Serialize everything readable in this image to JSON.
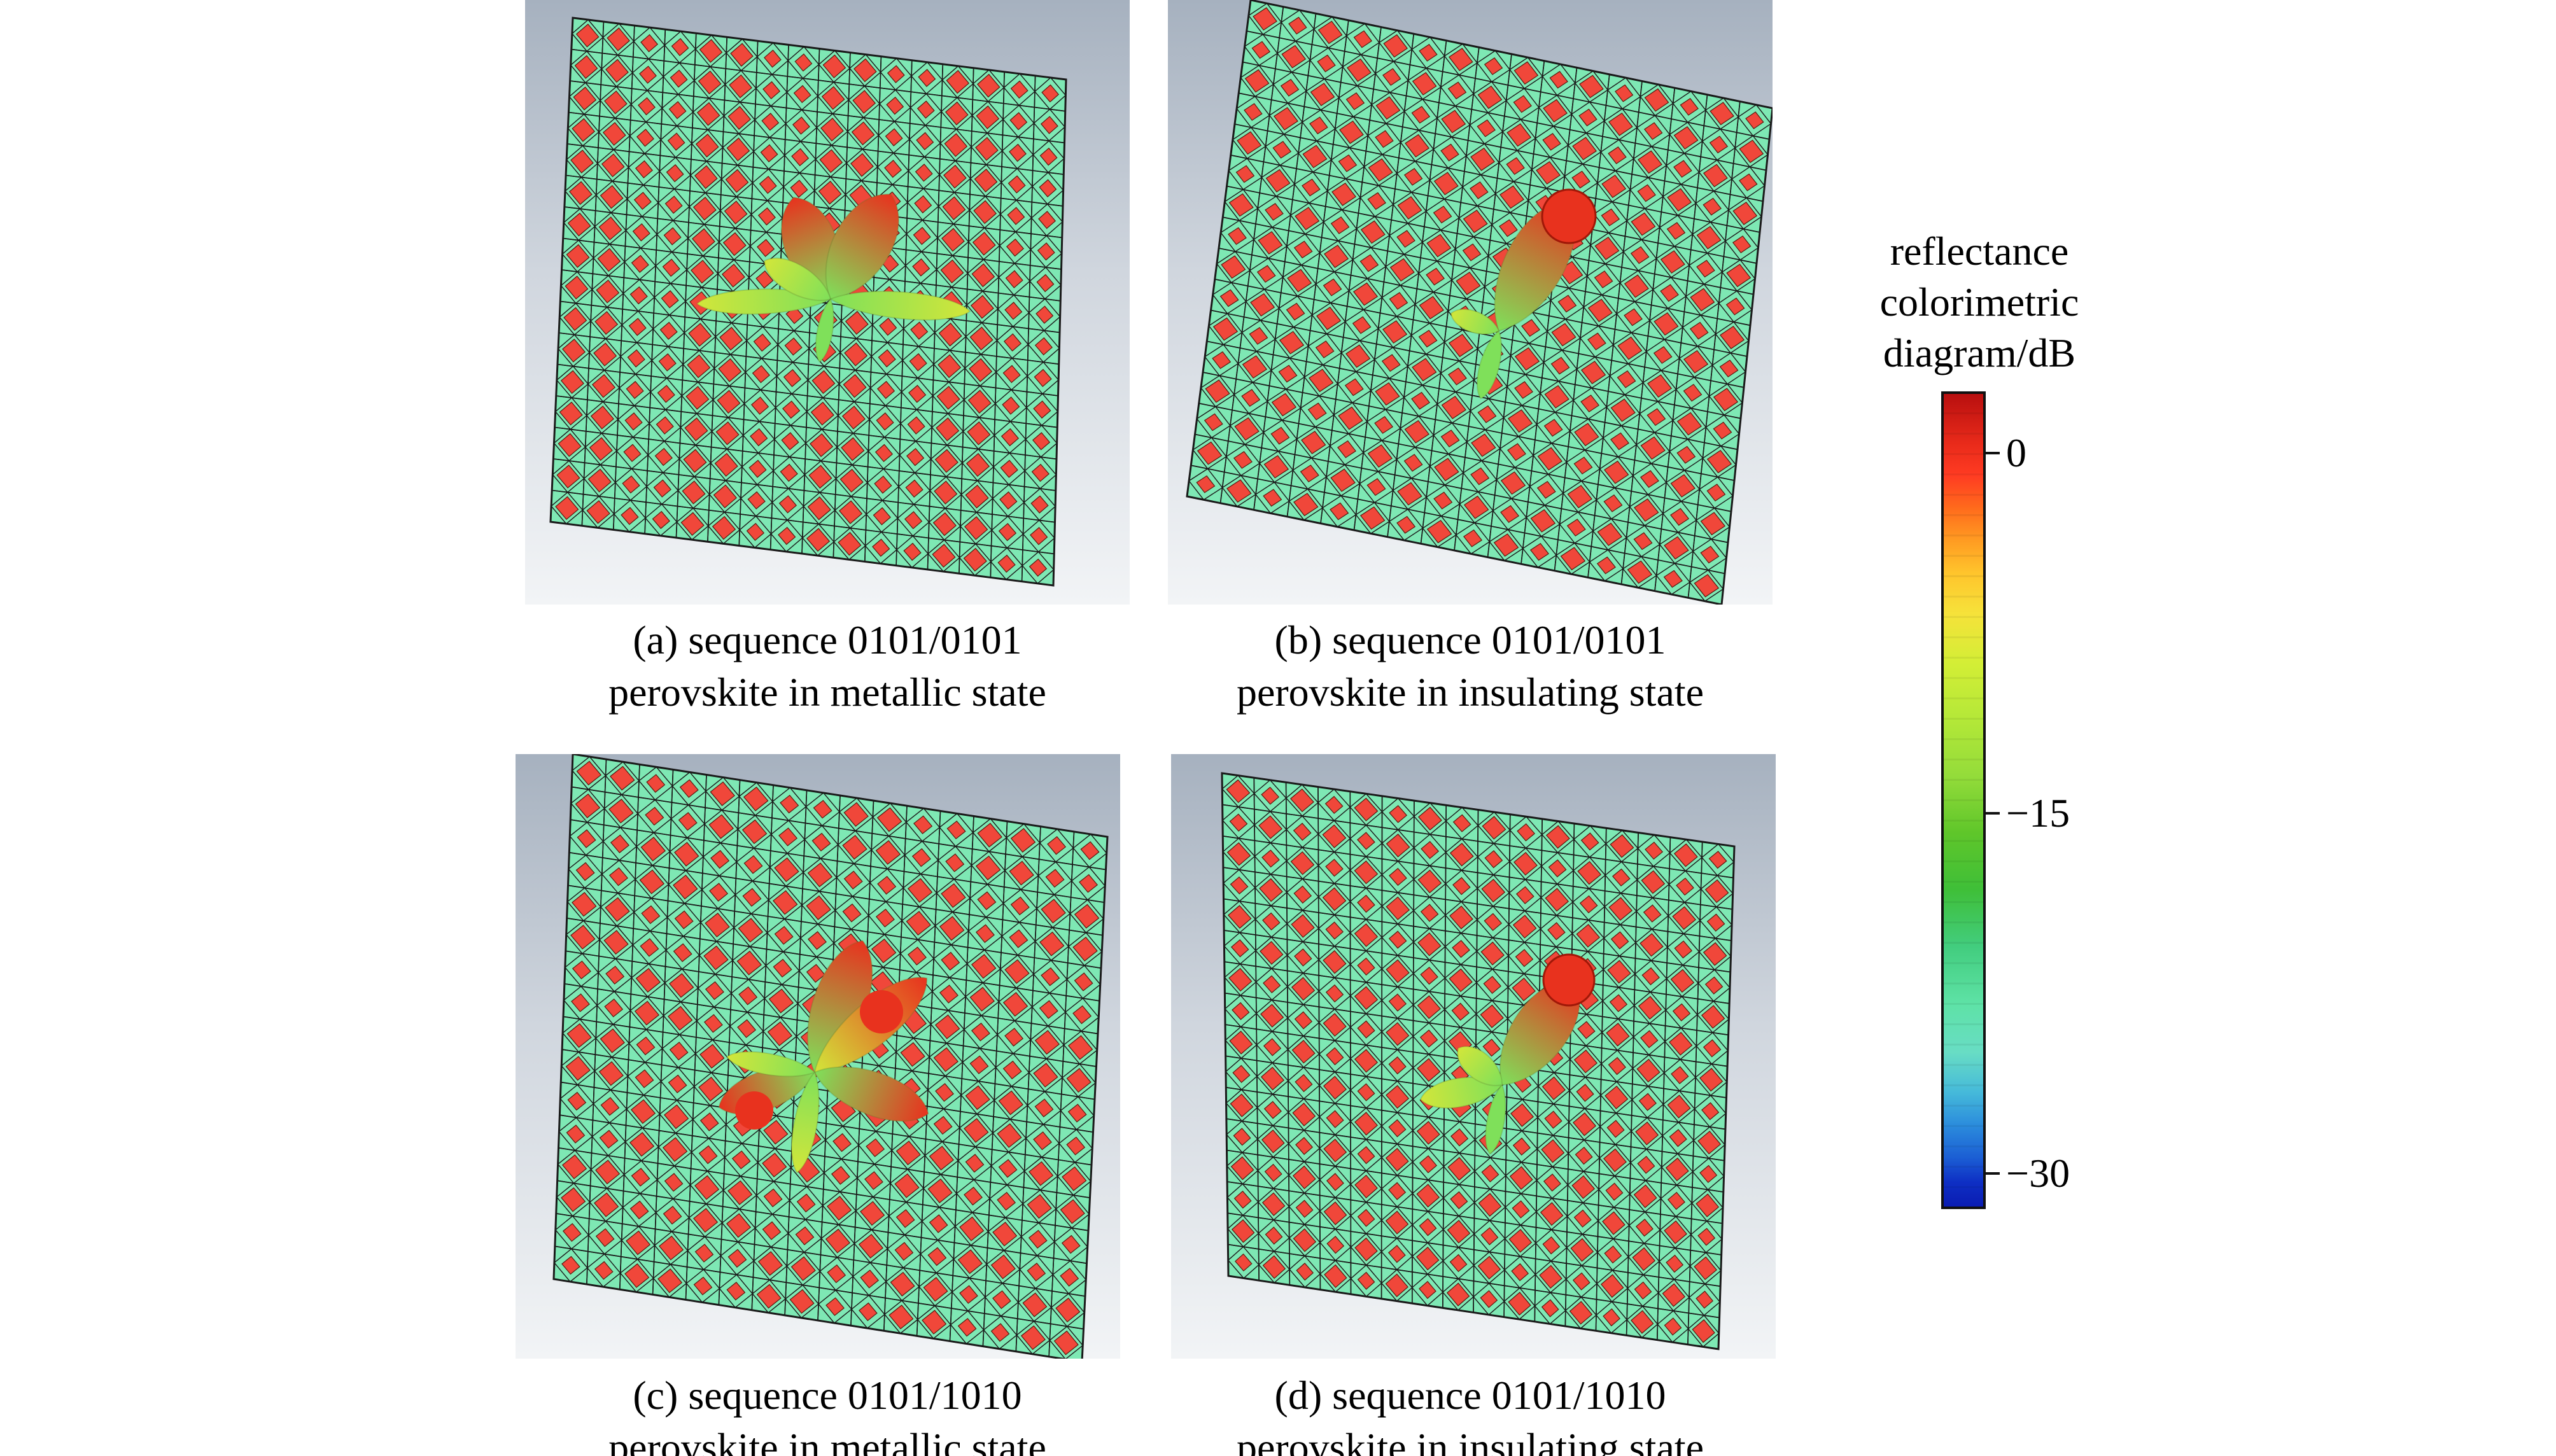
{
  "panels": [
    {
      "caption_line1": "(a) sequence 0101/0101",
      "caption_line2": "perovskite in metallic state"
    },
    {
      "caption_line1": "(b) sequence 0101/0101",
      "caption_line2": "perovskite in insulating state"
    },
    {
      "caption_line1": "(c) sequence 0101/1010",
      "caption_line2": "perovskite in metallic state"
    },
    {
      "caption_line1": "(d) sequence 0101/1010",
      "caption_line2": "perovskite in insulating state"
    }
  ],
  "legend": {
    "title_line1": "reflectance",
    "title_line2": "colorimetric",
    "title_line3": "diagram/dB",
    "ticks": [
      "0",
      "−15",
      "−30"
    ]
  },
  "colors": {
    "substrate": "#7ee8b4",
    "patch": "#f0473a",
    "grid_line": "#1a1a1a",
    "beam_high": "#e8321e",
    "beam_mid": "#d2e63a",
    "beam_low": "#7fe05a"
  }
}
